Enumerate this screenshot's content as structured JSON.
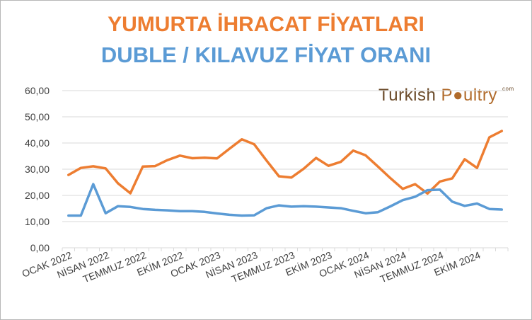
{
  "titles": {
    "line1": "YUMURTA İHRACAT FİYATLARI",
    "line2": "DUBLE / KILAVUZ  FİYAT ORANI"
  },
  "logo": {
    "word1": "Turkish",
    "word2": "P",
    "word3": "ultry",
    "mark": "com"
  },
  "colors": {
    "title1": "#ed7d31",
    "title2": "#5b9bd5",
    "orange_series": "#ed7d31",
    "blue_series": "#5b9bd5",
    "axis": "#d9d9d9",
    "grid": "#d9d9d9"
  },
  "chart_data": {
    "type": "line",
    "title": "YUMURTA İHRACAT FİYATLARI / DUBLE / KILAVUZ  FİYAT ORANI",
    "ylim": [
      0,
      60
    ],
    "yticks": [
      "0,00",
      "10,00",
      "20,00",
      "30,00",
      "40,00",
      "50,00",
      "60,00"
    ],
    "grid": "horizontal",
    "legend": "none",
    "x_labels": [
      "OCAK 2022",
      "NİSAN 2022",
      "TEMMUZ 2022",
      "EKİM 2022",
      "OCAK 2023",
      "NİSAN 2023",
      "TEMMUZ 2023",
      "EKİM 2023",
      "OCAK 2024",
      "NİSAN 2024",
      "TEMMUZ 2024",
      "EKİM 2024"
    ],
    "x_label_month_index": [
      0,
      3,
      6,
      9,
      12,
      15,
      18,
      21,
      24,
      27,
      30,
      33
    ],
    "series": [
      {
        "color": "orange",
        "values": [
          27.8,
          30.5,
          31.1,
          30.3,
          24.6,
          20.8,
          31.0,
          31.2,
          33.5,
          35.2,
          34.2,
          34.4,
          34.1,
          37.8,
          41.4,
          39.5,
          33.3,
          27.3,
          26.8,
          30.2,
          34.3,
          31.3,
          32.8,
          37.1,
          35.3,
          31.0,
          26.6,
          22.5,
          24.3,
          20.7,
          25.3,
          26.5,
          33.8,
          30.5,
          42.2,
          44.6
        ]
      },
      {
        "color": "blue",
        "values": [
          12.3,
          12.3,
          24.3,
          13.2,
          15.9,
          15.6,
          14.8,
          14.5,
          14.3,
          14.0,
          14.0,
          13.7,
          13.1,
          12.6,
          12.3,
          12.4,
          15.1,
          16.2,
          15.7,
          15.9,
          15.7,
          15.4,
          15.1,
          14.1,
          13.2,
          13.6,
          15.8,
          18.2,
          19.5,
          22.0,
          22.2,
          17.6,
          16.0,
          16.9,
          14.8,
          14.6
        ]
      }
    ]
  }
}
